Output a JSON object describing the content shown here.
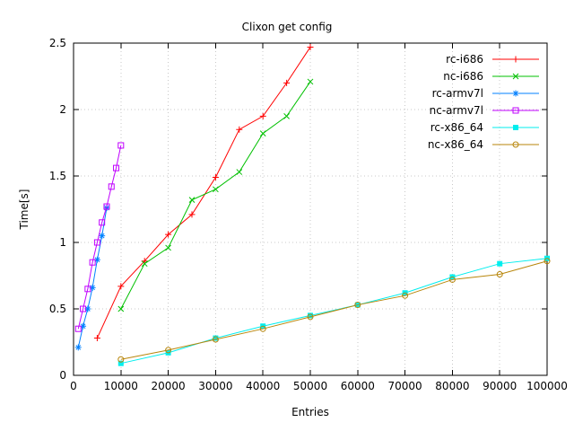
{
  "chart_data": {
    "type": "line",
    "title": "Clixon get config",
    "xlabel": "Entries",
    "ylabel": "Time[s]",
    "xlim": [
      0,
      100000
    ],
    "ylim": [
      0,
      2.5
    ],
    "x_ticks": [
      0,
      10000,
      20000,
      30000,
      40000,
      50000,
      60000,
      70000,
      80000,
      90000,
      100000
    ],
    "x_tick_labels": [
      "0",
      "10000",
      "20000",
      "30000",
      "40000",
      "50000",
      "60000",
      "70000",
      "80000",
      "90000",
      "100000"
    ],
    "y_ticks": [
      0,
      0.5,
      1,
      1.5,
      2,
      2.5
    ],
    "y_tick_labels": [
      "0",
      "0.5",
      "1",
      "1.5",
      "2",
      "2.5"
    ],
    "grid": true,
    "legend_position": "top-right",
    "series": [
      {
        "name": "rc-i686",
        "color": "#ff0000",
        "marker": "plus",
        "points": [
          [
            5000,
            0.28
          ],
          [
            10000,
            0.67
          ],
          [
            15000,
            0.86
          ],
          [
            20000,
            1.06
          ],
          [
            25000,
            1.21
          ],
          [
            30000,
            1.49
          ],
          [
            35000,
            1.85
          ],
          [
            40000,
            1.95
          ],
          [
            45000,
            2.2
          ],
          [
            50000,
            2.47
          ]
        ]
      },
      {
        "name": "nc-i686",
        "color": "#00c000",
        "marker": "cross",
        "points": [
          [
            10000,
            0.5
          ],
          [
            15000,
            0.84
          ],
          [
            20000,
            0.96
          ],
          [
            25000,
            1.32
          ],
          [
            30000,
            1.4
          ],
          [
            35000,
            1.53
          ],
          [
            40000,
            1.82
          ],
          [
            45000,
            1.95
          ],
          [
            50000,
            2.21
          ]
        ]
      },
      {
        "name": "rc-armv7l",
        "color": "#0080ff",
        "marker": "asterisk",
        "points": [
          [
            1000,
            0.21
          ],
          [
            2000,
            0.37
          ],
          [
            3000,
            0.5
          ],
          [
            4000,
            0.66
          ],
          [
            5000,
            0.87
          ],
          [
            6000,
            1.05
          ],
          [
            7000,
            1.26
          ]
        ]
      },
      {
        "name": "nc-armv7l",
        "color": "#c000ff",
        "marker": "square-open",
        "points": [
          [
            1000,
            0.35
          ],
          [
            2000,
            0.5
          ],
          [
            3000,
            0.65
          ],
          [
            4000,
            0.85
          ],
          [
            5000,
            1.0
          ],
          [
            6000,
            1.15
          ],
          [
            7000,
            1.27
          ],
          [
            8000,
            1.42
          ],
          [
            9000,
            1.56
          ],
          [
            10000,
            1.73
          ]
        ]
      },
      {
        "name": "rc-x86_64",
        "color": "#00eeee",
        "marker": "square-filled",
        "points": [
          [
            10000,
            0.09
          ],
          [
            20000,
            0.17
          ],
          [
            30000,
            0.28
          ],
          [
            40000,
            0.37
          ],
          [
            50000,
            0.45
          ],
          [
            60000,
            0.53
          ],
          [
            70000,
            0.62
          ],
          [
            80000,
            0.74
          ],
          [
            90000,
            0.84
          ],
          [
            100000,
            0.88
          ]
        ]
      },
      {
        "name": "nc-x86_64",
        "color": "#b8860b",
        "marker": "circle-open",
        "points": [
          [
            10000,
            0.12
          ],
          [
            20000,
            0.19
          ],
          [
            30000,
            0.27
          ],
          [
            40000,
            0.35
          ],
          [
            50000,
            0.44
          ],
          [
            60000,
            0.53
          ],
          [
            70000,
            0.6
          ],
          [
            80000,
            0.72
          ],
          [
            90000,
            0.76
          ],
          [
            100000,
            0.86
          ]
        ]
      }
    ]
  }
}
